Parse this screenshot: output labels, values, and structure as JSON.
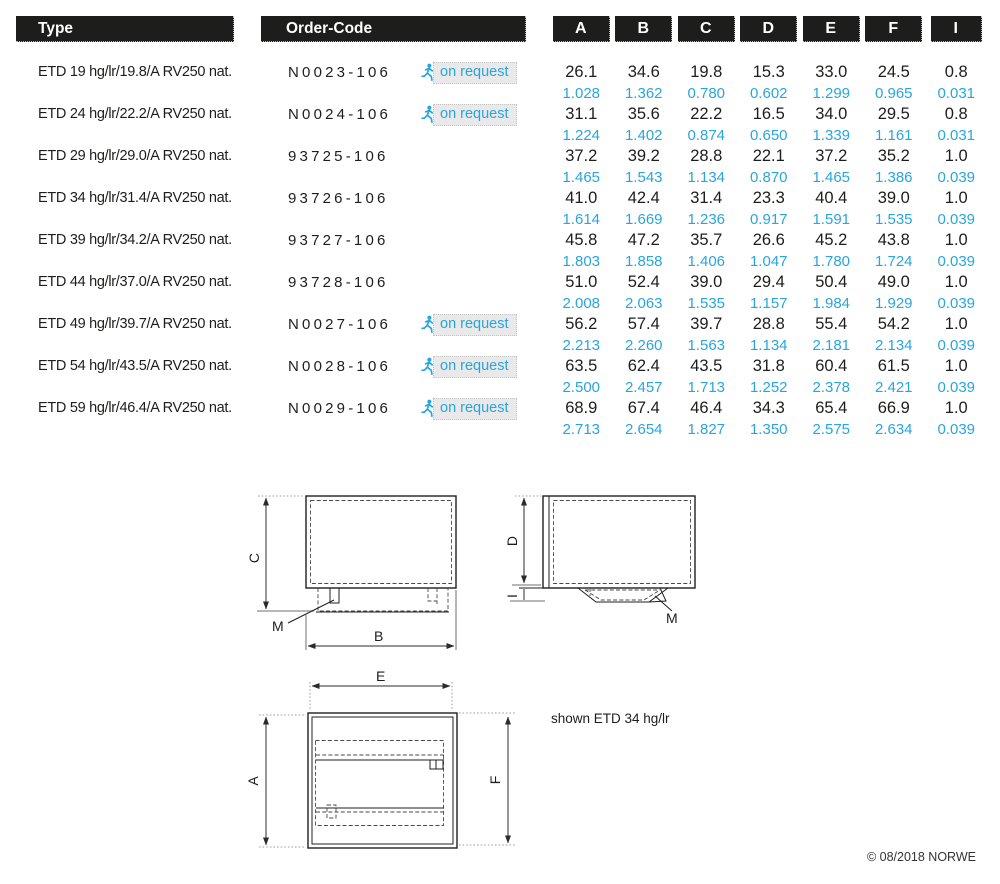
{
  "header": {
    "type_label": "Type",
    "order_code_label": "Order-Code",
    "dim_columns": [
      "A",
      "B",
      "C",
      "D",
      "E",
      "F",
      "I"
    ]
  },
  "badge": {
    "label": "on request"
  },
  "rows": [
    {
      "type": "ETD 19 hg/lr/19.8/A RV250 nat.",
      "code": "N0023-106",
      "on_request": true,
      "mm": [
        "26.1",
        "34.6",
        "19.8",
        "15.3",
        "33.0",
        "24.5",
        "0.8"
      ],
      "inch": [
        "1.028",
        "1.362",
        "0.780",
        "0.602",
        "1.299",
        "0.965",
        "0.031"
      ]
    },
    {
      "type": "ETD 24 hg/lr/22.2/A RV250 nat.",
      "code": "N0024-106",
      "on_request": true,
      "mm": [
        "31.1",
        "35.6",
        "22.2",
        "16.5",
        "34.0",
        "29.5",
        "0.8"
      ],
      "inch": [
        "1.224",
        "1.402",
        "0.874",
        "0.650",
        "1.339",
        "1.161",
        "0.031"
      ]
    },
    {
      "type": "ETD 29 hg/lr/29.0/A RV250 nat.",
      "code": "93725-106",
      "on_request": false,
      "mm": [
        "37.2",
        "39.2",
        "28.8",
        "22.1",
        "37.2",
        "35.2",
        "1.0"
      ],
      "inch": [
        "1.465",
        "1.543",
        "1.134",
        "0.870",
        "1.465",
        "1.386",
        "0.039"
      ]
    },
    {
      "type": "ETD 34 hg/lr/31.4/A RV250 nat.",
      "code": "93726-106",
      "on_request": false,
      "mm": [
        "41.0",
        "42.4",
        "31.4",
        "23.3",
        "40.4",
        "39.0",
        "1.0"
      ],
      "inch": [
        "1.614",
        "1.669",
        "1.236",
        "0.917",
        "1.591",
        "1.535",
        "0.039"
      ]
    },
    {
      "type": "ETD 39 hg/lr/34.2/A RV250 nat.",
      "code": "93727-106",
      "on_request": false,
      "mm": [
        "45.8",
        "47.2",
        "35.7",
        "26.6",
        "45.2",
        "43.8",
        "1.0"
      ],
      "inch": [
        "1.803",
        "1.858",
        "1.406",
        "1.047",
        "1.780",
        "1.724",
        "0.039"
      ]
    },
    {
      "type": "ETD 44 hg/lr/37.0/A RV250 nat.",
      "code": "93728-106",
      "on_request": false,
      "mm": [
        "51.0",
        "52.4",
        "39.0",
        "29.4",
        "50.4",
        "49.0",
        "1.0"
      ],
      "inch": [
        "2.008",
        "2.063",
        "1.535",
        "1.157",
        "1.984",
        "1.929",
        "0.039"
      ]
    },
    {
      "type": "ETD 49 hg/lr/39.7/A RV250 nat.",
      "code": "N0027-106",
      "on_request": true,
      "mm": [
        "56.2",
        "57.4",
        "39.7",
        "28.8",
        "55.4",
        "54.2",
        "1.0"
      ],
      "inch": [
        "2.213",
        "2.260",
        "1.563",
        "1.134",
        "2.181",
        "2.134",
        "0.039"
      ]
    },
    {
      "type": "ETD 54 hg/lr/43.5/A RV250 nat.",
      "code": "N0028-106",
      "on_request": true,
      "mm": [
        "63.5",
        "62.4",
        "43.5",
        "31.8",
        "60.4",
        "61.5",
        "1.0"
      ],
      "inch": [
        "2.500",
        "2.457",
        "1.713",
        "1.252",
        "2.378",
        "2.421",
        "0.039"
      ]
    },
    {
      "type": "ETD 59 hg/lr/46.4/A RV250 nat.",
      "code": "N0029-106",
      "on_request": true,
      "mm": [
        "68.9",
        "67.4",
        "46.4",
        "34.3",
        "65.4",
        "66.9",
        "1.0"
      ],
      "inch": [
        "2.713",
        "2.654",
        "1.827",
        "1.350",
        "2.575",
        "2.634",
        "0.039"
      ]
    }
  ],
  "diagram": {
    "labels": {
      "A": "A",
      "B": "B",
      "C": "C",
      "D": "D",
      "E": "E",
      "F": "F",
      "I": "I",
      "M": "M"
    },
    "note": "shown ETD 34 hg/lr"
  },
  "footer": {
    "copyright": "© 08/2018 NORWE"
  },
  "colors": {
    "accent_blue": "#29a5de",
    "bar_black": "#1d1d1b",
    "badge_bg": "#e9e9e9"
  }
}
